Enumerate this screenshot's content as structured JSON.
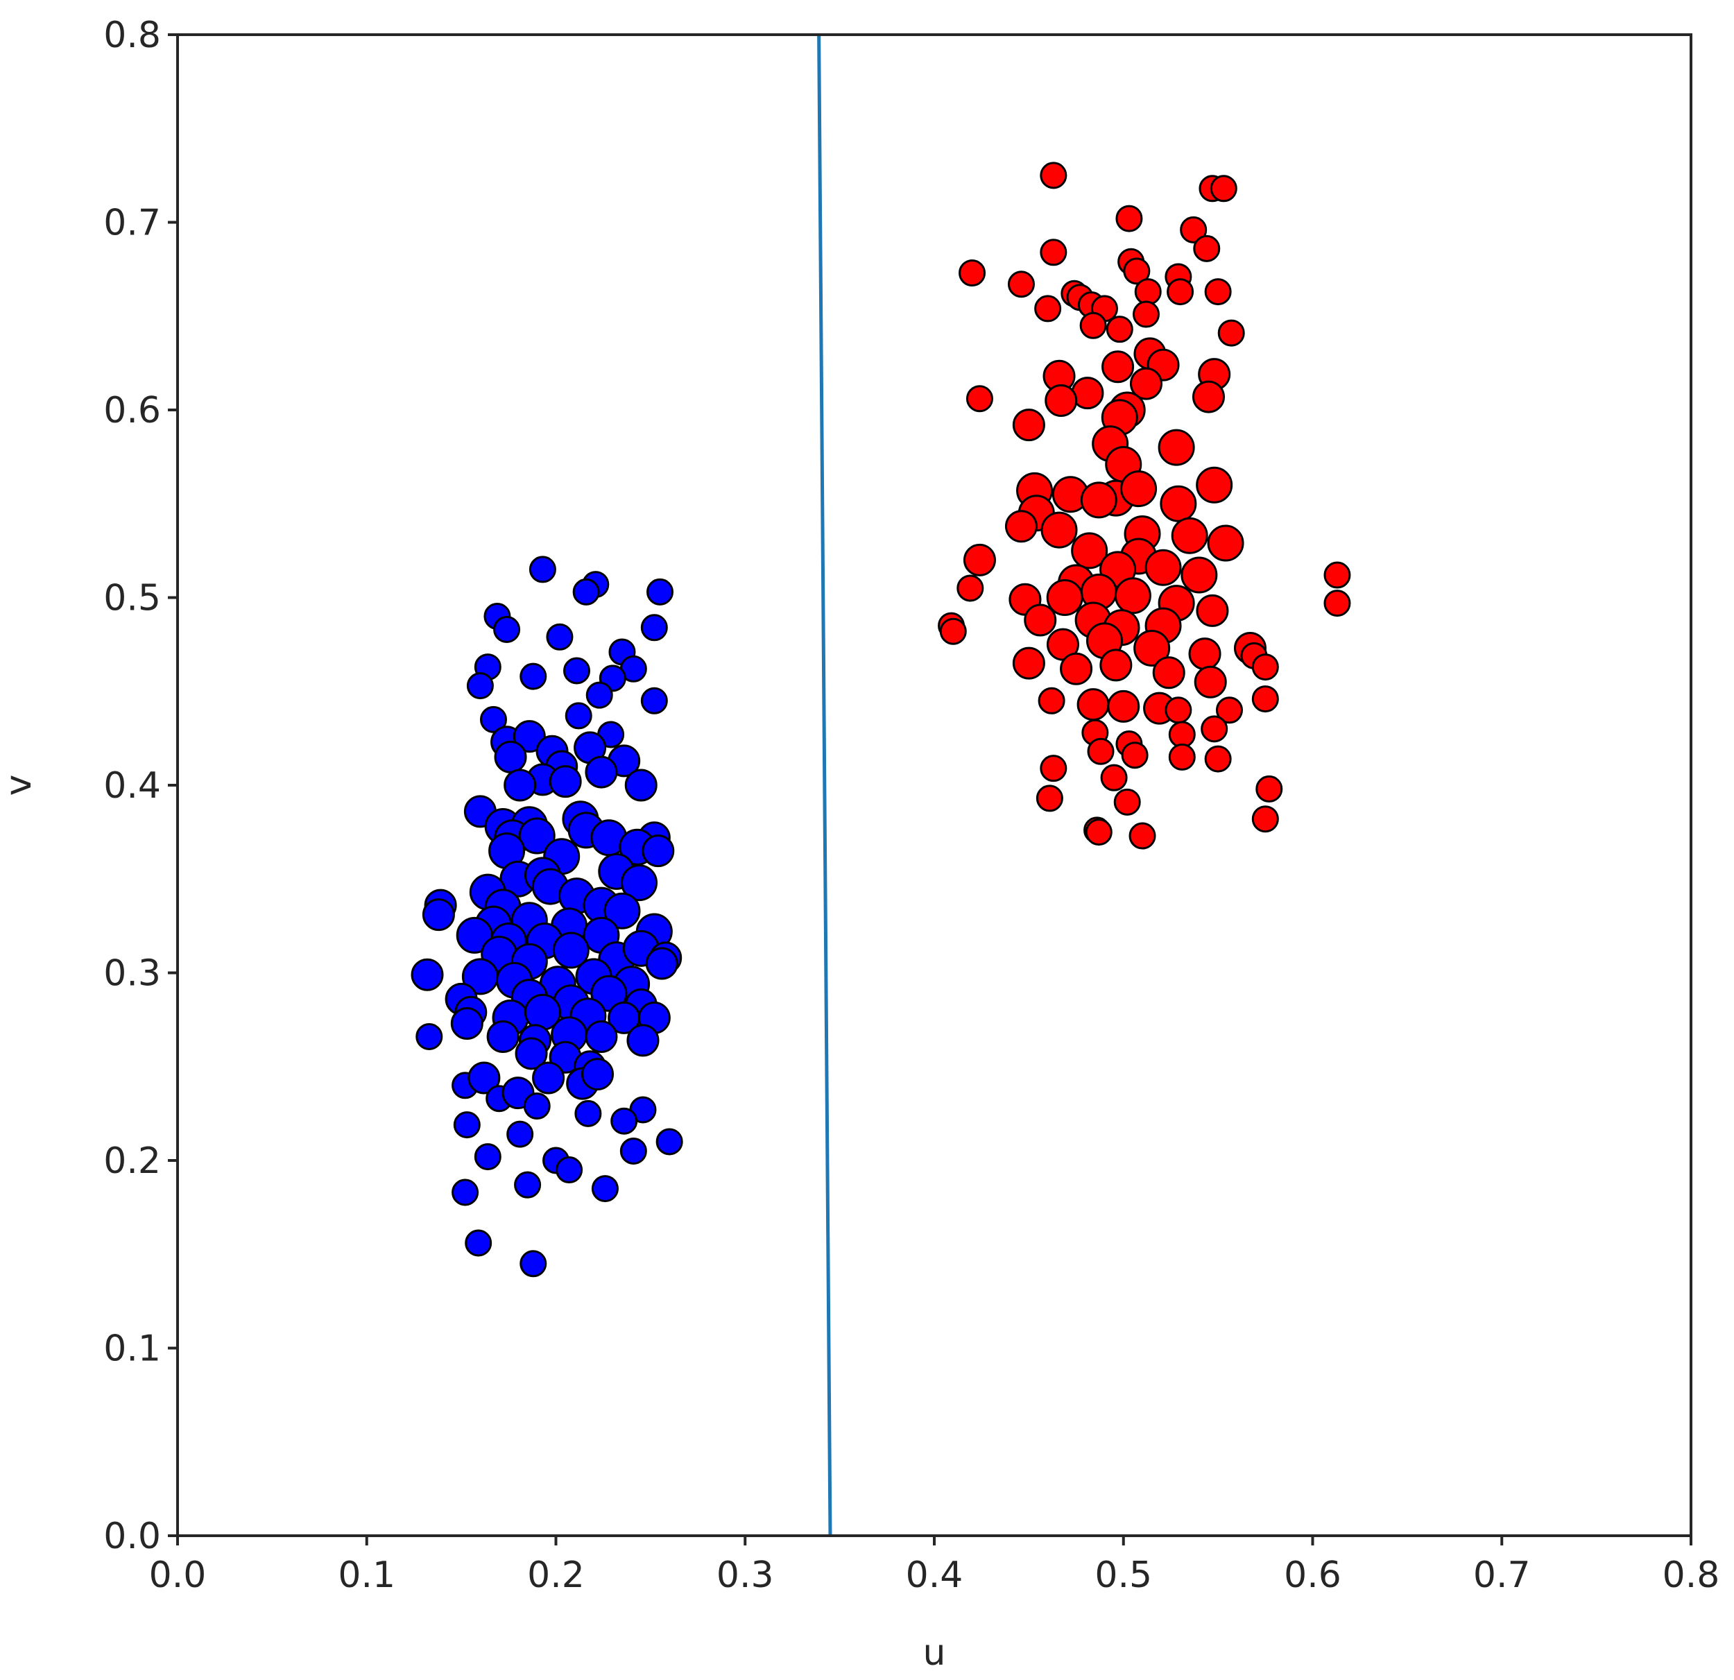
{
  "chart_data": {
    "type": "scatter",
    "xlabel": "u",
    "ylabel": "v",
    "xlim": [
      0.0,
      0.8
    ],
    "ylim": [
      0.0,
      0.8
    ],
    "xticks": [
      "0.0",
      "0.1",
      "0.2",
      "0.3",
      "0.4",
      "0.5",
      "0.6",
      "0.7",
      "0.8"
    ],
    "yticks": [
      "0.0",
      "0.1",
      "0.2",
      "0.3",
      "0.4",
      "0.5",
      "0.6",
      "0.7",
      "0.8"
    ],
    "grid": false,
    "marker_edge_color": "#000000",
    "boundary_line": {
      "color": "#1f77b4",
      "points": [
        [
          0.339,
          0.8
        ],
        [
          0.345,
          0.0
        ]
      ]
    },
    "series": [
      {
        "color": "#0000ff",
        "points": [
          [
            0.193,
            0.515
          ],
          [
            0.221,
            0.507
          ],
          [
            0.216,
            0.503
          ],
          [
            0.255,
            0.503
          ],
          [
            0.169,
            0.49
          ],
          [
            0.174,
            0.483
          ],
          [
            0.202,
            0.479
          ],
          [
            0.252,
            0.484
          ],
          [
            0.235,
            0.471
          ],
          [
            0.241,
            0.462
          ],
          [
            0.211,
            0.461
          ],
          [
            0.164,
            0.463
          ],
          [
            0.188,
            0.458
          ],
          [
            0.23,
            0.457
          ],
          [
            0.16,
            0.453
          ],
          [
            0.223,
            0.448
          ],
          [
            0.252,
            0.445
          ],
          [
            0.167,
            0.435
          ],
          [
            0.212,
            0.437
          ],
          [
            0.174,
            0.423
          ],
          [
            0.186,
            0.426
          ],
          [
            0.229,
            0.427
          ],
          [
            0.176,
            0.415
          ],
          [
            0.198,
            0.418
          ],
          [
            0.218,
            0.42
          ],
          [
            0.203,
            0.41
          ],
          [
            0.236,
            0.413
          ],
          [
            0.193,
            0.403
          ],
          [
            0.224,
            0.407
          ],
          [
            0.181,
            0.4
          ],
          [
            0.205,
            0.402
          ],
          [
            0.245,
            0.4
          ],
          [
            0.16,
            0.386
          ],
          [
            0.172,
            0.378
          ],
          [
            0.186,
            0.379
          ],
          [
            0.213,
            0.382
          ],
          [
            0.177,
            0.372
          ],
          [
            0.19,
            0.373
          ],
          [
            0.216,
            0.376
          ],
          [
            0.228,
            0.372
          ],
          [
            0.252,
            0.372
          ],
          [
            0.174,
            0.365
          ],
          [
            0.243,
            0.367
          ],
          [
            0.254,
            0.365
          ],
          [
            0.203,
            0.362
          ],
          [
            0.232,
            0.354
          ],
          [
            0.18,
            0.35
          ],
          [
            0.193,
            0.352
          ],
          [
            0.244,
            0.348
          ],
          [
            0.139,
            0.336
          ],
          [
            0.164,
            0.343
          ],
          [
            0.172,
            0.335
          ],
          [
            0.197,
            0.346
          ],
          [
            0.211,
            0.341
          ],
          [
            0.224,
            0.336
          ],
          [
            0.138,
            0.331
          ],
          [
            0.167,
            0.326
          ],
          [
            0.186,
            0.328
          ],
          [
            0.207,
            0.325
          ],
          [
            0.235,
            0.333
          ],
          [
            0.157,
            0.32
          ],
          [
            0.175,
            0.317
          ],
          [
            0.194,
            0.317
          ],
          [
            0.224,
            0.32
          ],
          [
            0.252,
            0.322
          ],
          [
            0.17,
            0.31
          ],
          [
            0.186,
            0.306
          ],
          [
            0.208,
            0.312
          ],
          [
            0.232,
            0.307
          ],
          [
            0.245,
            0.313
          ],
          [
            0.258,
            0.308
          ],
          [
            0.132,
            0.299
          ],
          [
            0.16,
            0.298
          ],
          [
            0.178,
            0.296
          ],
          [
            0.201,
            0.294
          ],
          [
            0.22,
            0.298
          ],
          [
            0.24,
            0.294
          ],
          [
            0.256,
            0.305
          ],
          [
            0.15,
            0.286
          ],
          [
            0.186,
            0.287
          ],
          [
            0.208,
            0.284
          ],
          [
            0.228,
            0.289
          ],
          [
            0.245,
            0.283
          ],
          [
            0.155,
            0.279
          ],
          [
            0.176,
            0.276
          ],
          [
            0.193,
            0.279
          ],
          [
            0.217,
            0.277
          ],
          [
            0.236,
            0.276
          ],
          [
            0.252,
            0.276
          ],
          [
            0.133,
            0.266
          ],
          [
            0.153,
            0.273
          ],
          [
            0.172,
            0.266
          ],
          [
            0.189,
            0.264
          ],
          [
            0.207,
            0.267
          ],
          [
            0.224,
            0.266
          ],
          [
            0.246,
            0.264
          ],
          [
            0.187,
            0.257
          ],
          [
            0.205,
            0.255
          ],
          [
            0.218,
            0.25
          ],
          [
            0.196,
            0.244
          ],
          [
            0.214,
            0.241
          ],
          [
            0.222,
            0.246
          ],
          [
            0.152,
            0.24
          ],
          [
            0.162,
            0.244
          ],
          [
            0.17,
            0.233
          ],
          [
            0.18,
            0.236
          ],
          [
            0.19,
            0.229
          ],
          [
            0.217,
            0.225
          ],
          [
            0.246,
            0.227
          ],
          [
            0.236,
            0.221
          ],
          [
            0.153,
            0.219
          ],
          [
            0.181,
            0.214
          ],
          [
            0.26,
            0.21
          ],
          [
            0.164,
            0.202
          ],
          [
            0.2,
            0.2
          ],
          [
            0.207,
            0.195
          ],
          [
            0.241,
            0.205
          ],
          [
            0.185,
            0.187
          ],
          [
            0.152,
            0.183
          ],
          [
            0.226,
            0.185
          ],
          [
            0.159,
            0.156
          ],
          [
            0.188,
            0.145
          ]
        ]
      },
      {
        "color": "#ff0000",
        "points": [
          [
            0.463,
            0.725
          ],
          [
            0.547,
            0.718
          ],
          [
            0.553,
            0.718
          ],
          [
            0.503,
            0.702
          ],
          [
            0.537,
            0.696
          ],
          [
            0.544,
            0.686
          ],
          [
            0.463,
            0.684
          ],
          [
            0.504,
            0.679
          ],
          [
            0.507,
            0.674
          ],
          [
            0.42,
            0.673
          ],
          [
            0.529,
            0.671
          ],
          [
            0.446,
            0.667
          ],
          [
            0.53,
            0.663
          ],
          [
            0.55,
            0.663
          ],
          [
            0.474,
            0.662
          ],
          [
            0.477,
            0.66
          ],
          [
            0.513,
            0.663
          ],
          [
            0.483,
            0.656
          ],
          [
            0.49,
            0.654
          ],
          [
            0.46,
            0.654
          ],
          [
            0.512,
            0.651
          ],
          [
            0.484,
            0.645
          ],
          [
            0.498,
            0.643
          ],
          [
            0.557,
            0.641
          ],
          [
            0.514,
            0.63
          ],
          [
            0.521,
            0.624
          ],
          [
            0.497,
            0.623
          ],
          [
            0.466,
            0.618
          ],
          [
            0.548,
            0.619
          ],
          [
            0.512,
            0.614
          ],
          [
            0.424,
            0.606
          ],
          [
            0.481,
            0.609
          ],
          [
            0.467,
            0.605
          ],
          [
            0.545,
            0.607
          ],
          [
            0.502,
            0.6
          ],
          [
            0.498,
            0.596
          ],
          [
            0.45,
            0.592
          ],
          [
            0.493,
            0.582
          ],
          [
            0.528,
            0.58
          ],
          [
            0.5,
            0.571
          ],
          [
            0.453,
            0.557
          ],
          [
            0.472,
            0.555
          ],
          [
            0.496,
            0.553
          ],
          [
            0.548,
            0.56
          ],
          [
            0.508,
            0.558
          ],
          [
            0.529,
            0.55
          ],
          [
            0.454,
            0.545
          ],
          [
            0.487,
            0.552
          ],
          [
            0.446,
            0.538
          ],
          [
            0.466,
            0.536
          ],
          [
            0.51,
            0.534
          ],
          [
            0.535,
            0.533
          ],
          [
            0.482,
            0.525
          ],
          [
            0.508,
            0.522
          ],
          [
            0.554,
            0.529
          ],
          [
            0.424,
            0.52
          ],
          [
            0.497,
            0.515
          ],
          [
            0.521,
            0.516
          ],
          [
            0.54,
            0.512
          ],
          [
            0.475,
            0.508
          ],
          [
            0.487,
            0.503
          ],
          [
            0.613,
            0.512
          ],
          [
            0.419,
            0.505
          ],
          [
            0.448,
            0.499
          ],
          [
            0.469,
            0.5
          ],
          [
            0.505,
            0.501
          ],
          [
            0.528,
            0.497
          ],
          [
            0.547,
            0.493
          ],
          [
            0.613,
            0.497
          ],
          [
            0.456,
            0.488
          ],
          [
            0.484,
            0.488
          ],
          [
            0.499,
            0.484
          ],
          [
            0.521,
            0.485
          ],
          [
            0.409,
            0.485
          ],
          [
            0.41,
            0.482
          ],
          [
            0.468,
            0.475
          ],
          [
            0.49,
            0.477
          ],
          [
            0.515,
            0.473
          ],
          [
            0.543,
            0.47
          ],
          [
            0.567,
            0.473
          ],
          [
            0.569,
            0.469
          ],
          [
            0.45,
            0.465
          ],
          [
            0.475,
            0.462
          ],
          [
            0.496,
            0.464
          ],
          [
            0.524,
            0.46
          ],
          [
            0.546,
            0.455
          ],
          [
            0.575,
            0.463
          ],
          [
            0.462,
            0.445
          ],
          [
            0.484,
            0.443
          ],
          [
            0.5,
            0.442
          ],
          [
            0.519,
            0.441
          ],
          [
            0.529,
            0.44
          ],
          [
            0.556,
            0.44
          ],
          [
            0.575,
            0.446
          ],
          [
            0.531,
            0.427
          ],
          [
            0.548,
            0.43
          ],
          [
            0.485,
            0.428
          ],
          [
            0.503,
            0.422
          ],
          [
            0.488,
            0.418
          ],
          [
            0.506,
            0.416
          ],
          [
            0.531,
            0.415
          ],
          [
            0.55,
            0.414
          ],
          [
            0.463,
            0.409
          ],
          [
            0.495,
            0.404
          ],
          [
            0.577,
            0.398
          ],
          [
            0.461,
            0.393
          ],
          [
            0.502,
            0.391
          ],
          [
            0.575,
            0.382
          ],
          [
            0.486,
            0.376
          ],
          [
            0.487,
            0.375
          ],
          [
            0.51,
            0.373
          ]
        ]
      }
    ]
  }
}
